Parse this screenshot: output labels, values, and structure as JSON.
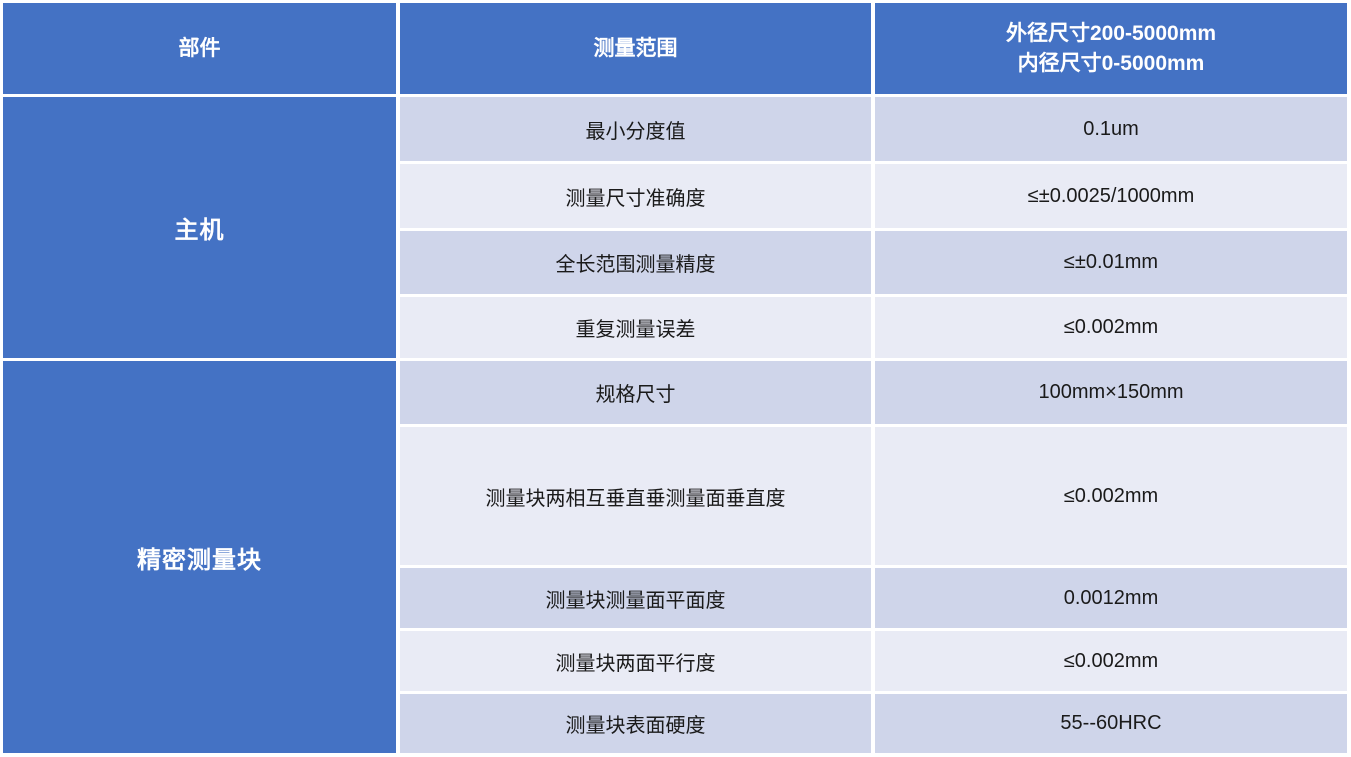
{
  "table": {
    "header": {
      "component_col": "部件",
      "param_col": "测量范围",
      "value_col_line1": "外径尺寸200-5000mm",
      "value_col_line2": "内径尺寸0-5000mm"
    },
    "sections": [
      {
        "component": "主机",
        "rows": [
          {
            "param": "最小分度值",
            "value": "0.1um"
          },
          {
            "param": "测量尺寸准确度",
            "value": "≤±0.0025/1000mm"
          },
          {
            "param": "全长范围测量精度",
            "value": "≤±0.01mm"
          },
          {
            "param": "重复测量误差",
            "value": "≤0.002mm"
          }
        ]
      },
      {
        "component": "精密测量块",
        "rows": [
          {
            "param": "规格尺寸",
            "value": "100mm×150mm"
          },
          {
            "param": "测量块两相互垂直垂测量面垂直度",
            "value": "≤0.002mm"
          },
          {
            "param": "测量块测量面平面度",
            "value": "0.0012mm"
          },
          {
            "param": "测量块两面平行度",
            "value": "≤0.002mm"
          },
          {
            "param": "测量块表面硬度",
            "value": "55--60HRC"
          }
        ]
      }
    ],
    "colors": {
      "header_bg": "#4472C4",
      "band_dark": "#CFD5EA",
      "band_light": "#E9EBF5",
      "header_text": "#FFFFFF",
      "body_text": "#1A1A1A"
    }
  }
}
